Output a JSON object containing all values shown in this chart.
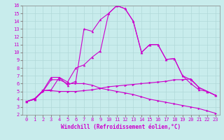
{
  "xlabel": "Windchill (Refroidissement éolien,°C)",
  "background_color": "#c8ecec",
  "grid_color": "#b0d8d8",
  "line_color": "#cc00cc",
  "xlim": [
    -0.5,
    23.5
  ],
  "ylim": [
    2,
    16
  ],
  "xticks": [
    0,
    1,
    2,
    3,
    4,
    5,
    6,
    7,
    8,
    9,
    10,
    11,
    12,
    13,
    14,
    15,
    16,
    17,
    18,
    19,
    20,
    21,
    22,
    23
  ],
  "yticks": [
    2,
    3,
    4,
    5,
    6,
    7,
    8,
    9,
    10,
    11,
    12,
    13,
    14,
    15,
    16
  ],
  "line1_x": [
    0,
    1,
    2,
    3,
    4,
    5,
    6,
    7,
    8,
    9,
    10,
    11,
    12,
    13,
    14,
    15,
    16,
    17,
    18,
    19,
    20,
    21,
    22,
    23
  ],
  "line1_y": [
    3.7,
    4.0,
    5.1,
    5.2,
    6.8,
    6.2,
    8.0,
    8.4,
    9.4,
    10.2,
    15.0,
    16.0,
    15.6,
    14.0,
    10.0,
    11.0,
    11.0,
    9.1,
    9.2,
    7.0,
    6.5,
    5.5,
    5.0,
    4.5
  ],
  "line2_x": [
    0,
    1,
    2,
    3,
    4,
    5,
    6,
    7,
    8,
    9,
    10,
    11,
    12,
    13,
    14,
    15,
    16,
    17,
    18,
    19,
    20,
    21,
    22,
    23
  ],
  "line2_y": [
    3.7,
    4.0,
    5.1,
    6.8,
    6.8,
    5.8,
    6.3,
    13.0,
    12.7,
    14.2,
    15.0,
    16.0,
    15.6,
    14.0,
    10.0,
    11.0,
    11.0,
    9.1,
    9.2,
    7.0,
    6.0,
    5.2,
    5.0,
    4.5
  ],
  "line3_x": [
    0,
    1,
    2,
    3,
    4,
    5,
    6,
    7,
    8,
    9,
    10,
    11,
    12,
    13,
    14,
    15,
    16,
    17,
    18,
    19,
    20,
    21,
    22,
    23
  ],
  "line3_y": [
    3.7,
    4.1,
    5.1,
    5.1,
    5.0,
    5.0,
    5.0,
    5.1,
    5.2,
    5.4,
    5.6,
    5.7,
    5.8,
    5.9,
    6.0,
    6.1,
    6.2,
    6.3,
    6.5,
    6.5,
    6.6,
    5.5,
    5.0,
    4.5
  ],
  "line4_x": [
    0,
    1,
    2,
    3,
    4,
    5,
    6,
    7,
    8,
    9,
    10,
    11,
    12,
    13,
    14,
    15,
    16,
    17,
    18,
    19,
    20,
    21,
    22,
    23
  ],
  "line4_y": [
    3.7,
    4.0,
    5.0,
    6.5,
    6.5,
    6.0,
    6.0,
    6.0,
    5.8,
    5.4,
    5.2,
    5.0,
    4.8,
    4.6,
    4.3,
    4.0,
    3.8,
    3.6,
    3.4,
    3.2,
    3.0,
    2.8,
    2.5,
    2.2
  ],
  "xlabel_fontsize": 5.5,
  "tick_fontsize": 5.0
}
